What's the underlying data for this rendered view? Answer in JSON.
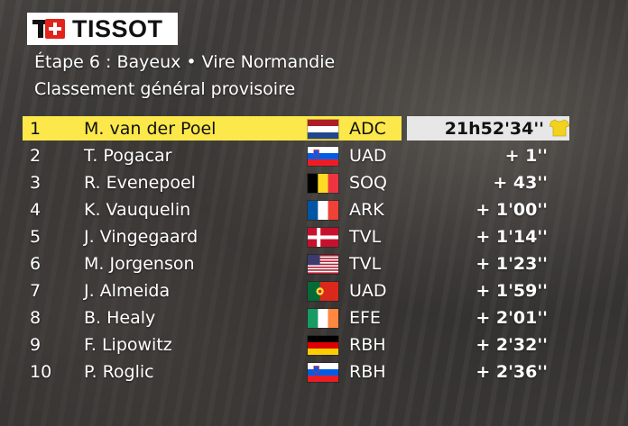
{
  "brand": {
    "name": "TISSOT",
    "cross_color": "#e2231a"
  },
  "header": {
    "stage": "Étape 6 : Bayeux • Vire Normandie",
    "classification": "Classement général provisoire"
  },
  "colors": {
    "leader_bar": "#fce84a",
    "time_bar": "#e7e7e7",
    "yellow_jersey": "#f2d21e"
  },
  "standings": [
    {
      "pos": "1",
      "name": "M. van der Poel",
      "flag": "netherlands",
      "team": "ADC",
      "gap": "21h52'34''",
      "leader": true,
      "jersey": "yellow-jersey-icon"
    },
    {
      "pos": "2",
      "name": "T. Pogacar",
      "flag": "slovenia",
      "team": "UAD",
      "gap": "+ 1''"
    },
    {
      "pos": "3",
      "name": "R. Evenepoel",
      "flag": "belgium",
      "team": "SOQ",
      "gap": "+ 43''"
    },
    {
      "pos": "4",
      "name": "K. Vauquelin",
      "flag": "france",
      "team": "ARK",
      "gap": "+ 1'00''"
    },
    {
      "pos": "5",
      "name": "J. Vingegaard",
      "flag": "denmark",
      "team": "TVL",
      "gap": "+ 1'14''"
    },
    {
      "pos": "6",
      "name": "M. Jorgenson",
      "flag": "usa",
      "team": "TVL",
      "gap": "+ 1'23''"
    },
    {
      "pos": "7",
      "name": "J. Almeida",
      "flag": "portugal",
      "team": "UAD",
      "gap": "+ 1'59''"
    },
    {
      "pos": "8",
      "name": "B. Healy",
      "flag": "ireland",
      "team": "EFE",
      "gap": "+ 2'01''"
    },
    {
      "pos": "9",
      "name": "F. Lipowitz",
      "flag": "germany",
      "team": "RBH",
      "gap": "+ 2'32''"
    },
    {
      "pos": "10",
      "name": "P. Roglic",
      "flag": "slovenia",
      "team": "RBH",
      "gap": "+ 2'36''"
    }
  ]
}
